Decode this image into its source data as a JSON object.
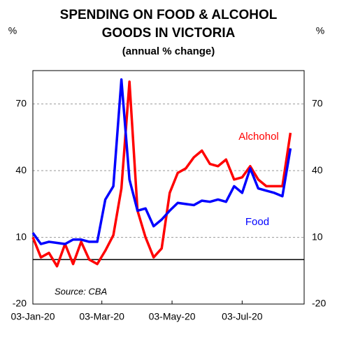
{
  "chart_data": {
    "type": "line",
    "title": [
      "SPENDING ON FOOD & ALCOHOL",
      "GOODS IN VICTORIA"
    ],
    "subtitle": "(annual % change)",
    "y_unit": "%",
    "source": "Source: CBA",
    "categories": [
      null,
      null,
      null,
      null,
      null,
      null,
      null,
      null,
      null,
      null,
      null,
      null,
      null,
      null,
      null,
      null,
      null,
      null,
      null,
      null,
      null,
      null,
      null,
      null,
      null,
      null,
      null,
      null,
      null,
      null,
      null,
      null,
      null
    ],
    "xlim": [
      0,
      33.7
    ],
    "xticks": [
      {
        "value": 0,
        "label": "03-Jan-20"
      },
      {
        "value": 8.57,
        "label": "03-Mar-20"
      },
      {
        "value": 17.29,
        "label": "03-May-20"
      },
      {
        "value": 26,
        "label": "03-Jul-20"
      }
    ],
    "ylim": [
      -20,
      85
    ],
    "yticks": [
      -20,
      10,
      40,
      70
    ],
    "grid": true,
    "series": [
      {
        "name": "Alchohol",
        "color": "#ff0000",
        "values": [
          10,
          1,
          3,
          -3,
          7,
          -2,
          8,
          0,
          -2,
          4,
          11,
          32,
          80,
          22,
          10,
          1,
          5,
          30,
          39,
          41,
          46,
          49,
          43,
          42,
          45,
          36,
          37,
          42,
          36,
          33,
          33,
          33,
          57
        ]
      },
      {
        "name": "Food",
        "color": "#0000ff",
        "values": [
          12,
          7,
          8,
          7.5,
          7,
          9,
          9,
          8,
          8,
          27,
          33,
          81,
          36,
          22,
          23,
          15,
          18,
          22,
          25.5,
          25,
          24.5,
          26.5,
          26,
          27,
          26,
          33,
          30,
          41,
          32,
          31,
          30,
          28.5,
          50
        ]
      }
    ]
  }
}
